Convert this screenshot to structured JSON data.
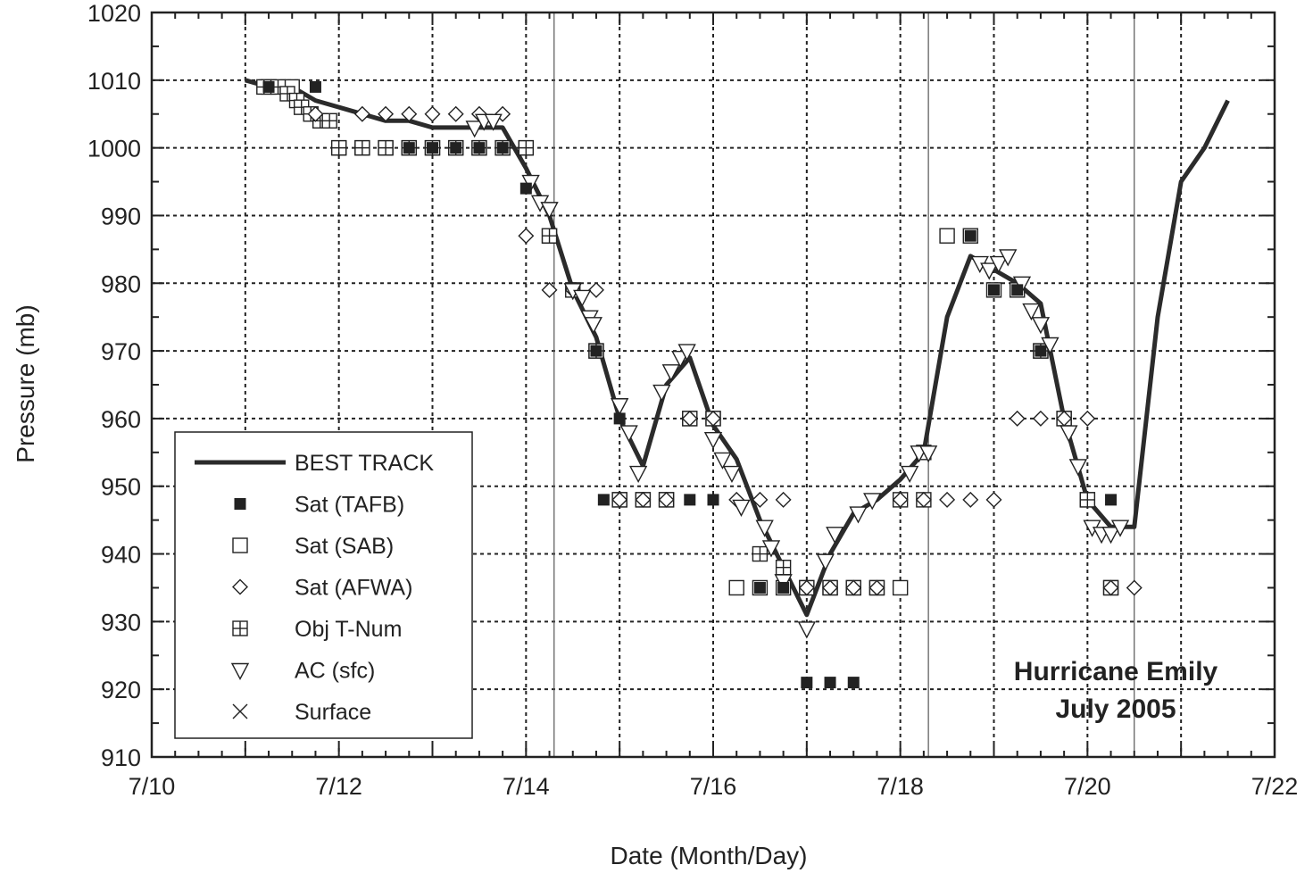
{
  "chart_data": {
    "type": "scatter",
    "title": "",
    "xlabel": "Date (Month/Day)",
    "ylabel": "Pressure (mb)",
    "xlim": [
      10,
      22
    ],
    "ylim": [
      910,
      1020
    ],
    "x_ticks": [
      {
        "value": 10,
        "label": "7/10"
      },
      {
        "value": 12,
        "label": "7/12"
      },
      {
        "value": 14,
        "label": "7/14"
      },
      {
        "value": 16,
        "label": "7/16"
      },
      {
        "value": 18,
        "label": "7/18"
      },
      {
        "value": 20,
        "label": "7/20"
      },
      {
        "value": 22,
        "label": "7/22"
      }
    ],
    "y_ticks": [
      910,
      920,
      930,
      940,
      950,
      960,
      970,
      980,
      990,
      1000,
      1010,
      1020
    ],
    "grid": true,
    "legend_position": "lower-left",
    "annotation": [
      "Hurricane Emily",
      "July 2005"
    ],
    "landfall_lines_x": [
      14.3,
      18.3,
      20.5
    ],
    "series": [
      {
        "name": "BEST TRACK",
        "marker": "line",
        "x": [
          11.0,
          11.25,
          11.5,
          11.75,
          12.0,
          12.25,
          12.5,
          12.75,
          13.0,
          13.25,
          13.5,
          13.75,
          14.0,
          14.25,
          14.5,
          14.75,
          15.0,
          15.25,
          15.5,
          15.75,
          16.0,
          16.25,
          16.5,
          16.75,
          17.0,
          17.25,
          17.5,
          17.75,
          18.0,
          18.25,
          18.5,
          18.75,
          19.0,
          19.25,
          19.5,
          19.75,
          20.0,
          20.25,
          20.5,
          20.75,
          21.0,
          21.25,
          21.5
        ],
        "y": [
          1010,
          1009,
          1009,
          1007,
          1006,
          1005,
          1004,
          1004,
          1003,
          1003,
          1003,
          1003,
          997,
          990,
          979,
          972,
          960,
          953,
          965,
          969,
          959,
          954,
          945,
          938,
          931,
          940,
          946,
          948,
          951,
          955,
          975,
          984,
          982,
          980,
          977,
          960,
          948,
          944,
          944,
          975,
          995,
          1000,
          1007
        ]
      },
      {
        "name": "Sat (TAFB)",
        "marker": "filled-square",
        "x": [
          11.25,
          11.75,
          12.75,
          13.0,
          13.25,
          13.5,
          13.75,
          14.0,
          14.75,
          15.0,
          14.83,
          15.75,
          16.0,
          16.5,
          16.75,
          17.0,
          17.25,
          17.5,
          18.75,
          19.0,
          19.25,
          19.5,
          20.25
        ],
        "y": [
          1009,
          1009,
          1000,
          1000,
          1000,
          1000,
          1000,
          994,
          970,
          960,
          948,
          948,
          948,
          935,
          935,
          921,
          921,
          921,
          987,
          979,
          979,
          970,
          948
        ]
      },
      {
        "name": "Sat (SAB)",
        "marker": "open-square",
        "x": [
          11.25,
          11.5,
          12.0,
          12.25,
          12.5,
          12.75,
          13.0,
          13.25,
          13.5,
          13.75,
          14.0,
          14.25,
          14.75,
          15.0,
          15.25,
          15.5,
          15.75,
          16.0,
          16.25,
          16.5,
          16.75,
          17.0,
          17.25,
          17.5,
          17.75,
          18.0,
          18.25,
          18.5,
          18.75,
          19.0,
          19.25,
          19.5,
          19.75,
          20.0,
          20.25
        ],
        "y": [
          1009,
          1009,
          1000,
          1000,
          1000,
          1000,
          1000,
          1000,
          1000,
          1000,
          1000,
          987,
          970,
          948,
          948,
          948,
          960,
          960,
          935,
          935,
          935,
          935,
          935,
          935,
          935,
          935,
          955,
          987,
          987,
          979,
          979,
          970,
          960,
          948,
          935
        ]
      },
      {
        "name": "Sat (AFWA)",
        "marker": "open-diamond",
        "x": [
          11.75,
          12.25,
          12.5,
          12.75,
          13.0,
          13.25,
          13.5,
          13.75,
          14.0,
          14.25,
          14.5,
          14.75,
          15.0,
          15.25,
          15.5,
          15.75,
          16.0,
          16.25,
          16.5,
          16.75,
          17.0,
          17.25,
          17.5,
          17.75,
          18.0,
          18.25,
          18.5,
          18.75,
          19.0,
          19.25,
          19.5,
          19.75,
          20.0,
          20.25,
          20.5
        ],
        "y": [
          1005,
          1005,
          1005,
          1005,
          1005,
          1005,
          1005,
          1005,
          987,
          979,
          979,
          979,
          948,
          948,
          948,
          960,
          960,
          948,
          948,
          948,
          935,
          935,
          935,
          935,
          948,
          948,
          948,
          948,
          948,
          960,
          960,
          960,
          960,
          935,
          935
        ]
      },
      {
        "name": "Obj T-Num",
        "marker": "open-square-plus",
        "x": [
          11.2,
          11.35,
          11.45,
          11.55,
          11.6,
          11.7,
          11.8,
          11.9,
          12.0,
          12.25,
          12.5,
          12.75,
          13.0,
          13.25,
          13.5,
          13.75,
          14.0,
          14.25,
          14.5,
          14.75,
          15.0,
          15.25,
          15.5,
          15.75,
          16.0,
          16.5,
          16.75,
          17.0,
          17.25,
          17.5,
          17.75,
          18.0,
          18.25,
          19.5,
          19.75,
          20.0,
          20.25
        ],
        "y": [
          1009,
          1009,
          1008,
          1007,
          1006,
          1005,
          1004,
          1004,
          1000,
          1000,
          1000,
          1000,
          1000,
          1000,
          1000,
          1000,
          1000,
          987,
          979,
          970,
          948,
          948,
          948,
          960,
          960,
          940,
          938,
          935,
          935,
          935,
          935,
          948,
          948,
          970,
          960,
          948,
          935
        ]
      },
      {
        "name": "AC (sfc)",
        "marker": "open-triangle-down",
        "x": [
          13.45,
          13.55,
          13.65,
          14.05,
          14.15,
          14.25,
          14.5,
          14.6,
          14.68,
          14.72,
          15.0,
          15.1,
          15.2,
          15.45,
          15.55,
          15.65,
          15.72,
          16.0,
          16.1,
          16.2,
          16.3,
          16.55,
          16.62,
          16.75,
          17.0,
          17.2,
          17.3,
          17.55,
          17.7,
          18.1,
          18.2,
          18.3,
          18.85,
          18.95,
          19.05,
          19.15,
          19.3,
          19.4,
          19.5,
          19.6,
          19.8,
          19.9,
          20.05,
          20.15,
          20.25,
          20.35
        ],
        "y": [
          1003,
          1004,
          1004,
          995,
          992,
          991,
          979,
          978,
          975,
          974,
          962,
          958,
          952,
          964,
          967,
          969,
          970,
          957,
          954,
          952,
          947,
          944,
          941,
          936,
          929,
          939,
          943,
          946,
          948,
          952,
          955,
          955,
          983,
          982,
          983,
          984,
          980,
          976,
          974,
          971,
          958,
          953,
          944,
          943,
          943,
          944
        ]
      },
      {
        "name": "Surface",
        "marker": "x",
        "x": [],
        "y": []
      }
    ]
  }
}
